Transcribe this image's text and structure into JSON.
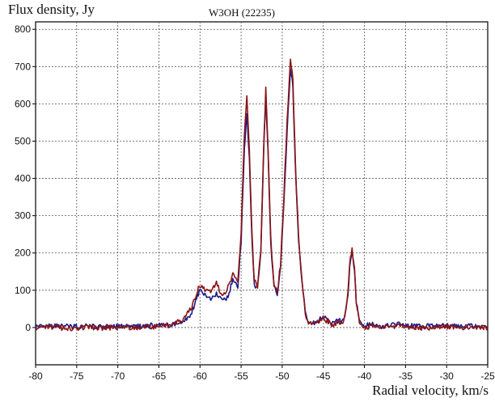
{
  "chart_data": {
    "type": "line",
    "title": "W3OH (22235)",
    "xlabel": "Radial velocity, km/s",
    "ylabel": "Flux density, Jy",
    "xlim": [
      -80,
      -25
    ],
    "ylim": [
      -100,
      820
    ],
    "x_ticks": [
      -80,
      -75,
      -70,
      -65,
      -60,
      -55,
      -50,
      -45,
      -40,
      -35,
      -30,
      -25
    ],
    "y_ticks": [
      0,
      100,
      200,
      300,
      400,
      500,
      600,
      700,
      800
    ],
    "grid": true,
    "colors": {
      "series_1": "#1c1c8c",
      "series_2": "#8b1414"
    },
    "series": [
      {
        "color": "#1c1c8c",
        "x": [
          -80,
          -78,
          -76,
          -74,
          -72,
          -70,
          -68,
          -66,
          -64,
          -62,
          -61,
          -60.3,
          -60,
          -59.3,
          -58.7,
          -58,
          -57.3,
          -56.7,
          -56,
          -55.4,
          -55,
          -54.6,
          -54.3,
          -54,
          -53.7,
          -53.4,
          -53,
          -52.6,
          -52.3,
          -52,
          -51.7,
          -51.4,
          -51,
          -50.6,
          -50.2,
          -49.8,
          -49.4,
          -49,
          -48.7,
          -48.4,
          -48,
          -47.6,
          -47.2,
          -46.8,
          -46.3,
          -45.5,
          -45,
          -44.4,
          -44,
          -43.5,
          -42.5,
          -42,
          -41.8,
          -41.5,
          -41.2,
          -41,
          -40.6,
          -40,
          -39,
          -38,
          -36,
          -34,
          -32,
          -30,
          -28,
          -26,
          -25
        ],
        "y": [
          3,
          5,
          2,
          4,
          1,
          3,
          2,
          5,
          6,
          15,
          40,
          85,
          100,
          85,
          75,
          90,
          70,
          80,
          125,
          110,
          230,
          480,
          570,
          450,
          250,
          115,
          105,
          200,
          440,
          620,
          460,
          230,
          110,
          90,
          160,
          330,
          530,
          690,
          650,
          430,
          230,
          120,
          45,
          15,
          12,
          20,
          30,
          20,
          12,
          15,
          20,
          80,
          160,
          200,
          150,
          70,
          20,
          5,
          8,
          2,
          10,
          4,
          3,
          5,
          4,
          3,
          2
        ]
      },
      {
        "color": "#8b1414",
        "x": [
          -80,
          -78,
          -76,
          -74,
          -72,
          -70,
          -68,
          -66,
          -64,
          -62,
          -61,
          -60.3,
          -60,
          -59.3,
          -58.7,
          -58,
          -57.3,
          -56.7,
          -56,
          -55.4,
          -55,
          -54.6,
          -54.3,
          -54,
          -53.7,
          -53.4,
          -53,
          -52.6,
          -52.3,
          -52,
          -51.7,
          -51.4,
          -51,
          -50.6,
          -50.2,
          -49.8,
          -49.4,
          -49,
          -48.7,
          -48.4,
          -48,
          -47.6,
          -47.2,
          -46.8,
          -46.3,
          -45.5,
          -45,
          -44.4,
          -44,
          -43.5,
          -42.5,
          -42,
          -41.8,
          -41.5,
          -41.2,
          -41,
          -40.6,
          -40,
          -39,
          -38,
          -36,
          -34,
          -32,
          -30,
          -28,
          -26,
          -25
        ],
        "y": [
          0,
          2,
          -3,
          0,
          -2,
          1,
          -1,
          2,
          4,
          20,
          55,
          100,
          112,
          100,
          95,
          118,
          85,
          105,
          140,
          120,
          250,
          520,
          620,
          470,
          260,
          125,
          112,
          210,
          450,
          640,
          470,
          240,
          115,
          95,
          170,
          350,
          560,
          715,
          670,
          440,
          240,
          125,
          40,
          10,
          8,
          15,
          25,
          15,
          8,
          10,
          18,
          90,
          175,
          212,
          160,
          72,
          18,
          2,
          3,
          0,
          5,
          -2,
          0,
          3,
          1,
          0,
          -1
        ]
      }
    ]
  }
}
